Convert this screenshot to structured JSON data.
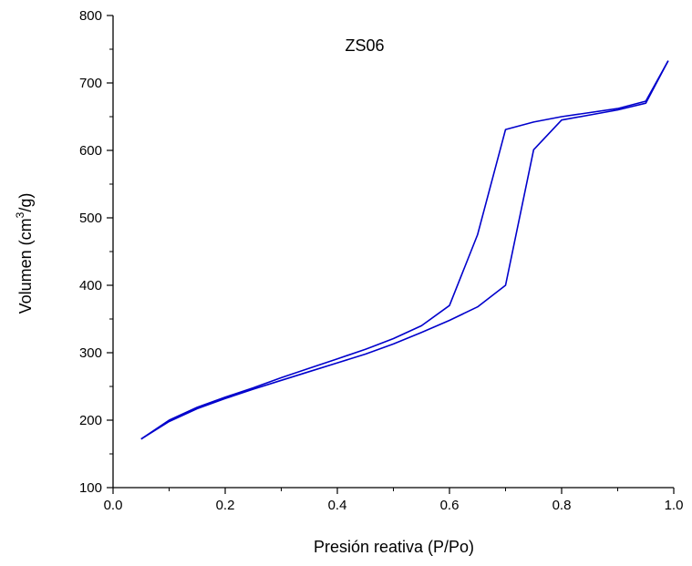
{
  "chart_data": {
    "type": "line",
    "title": "ZS06",
    "xlabel": "Presión reativa (P/Po)",
    "ylabel_main": "Volumen (cm",
    "ylabel_sup": "3",
    "ylabel_tail": "/g)",
    "xlim": [
      0.0,
      1.0
    ],
    "ylim": [
      100,
      800
    ],
    "xticks": [
      0.0,
      0.2,
      0.4,
      0.6,
      0.8,
      1.0
    ],
    "xtick_labels": [
      "0.0",
      "0.2",
      "0.4",
      "0.6",
      "0.8",
      "1.0"
    ],
    "yticks": [
      100,
      200,
      300,
      400,
      500,
      600,
      700,
      800
    ],
    "ytick_labels": [
      "100",
      "200",
      "300",
      "400",
      "500",
      "600",
      "700",
      "800"
    ],
    "line_color": "#0000cc",
    "grid": false,
    "series": [
      {
        "x": [
          0.05,
          0.1,
          0.15,
          0.2,
          0.25,
          0.3,
          0.35,
          0.4,
          0.45,
          0.5,
          0.55,
          0.6,
          0.65,
          0.7,
          0.75,
          0.8,
          0.9,
          0.95,
          0.99
        ],
        "y": [
          172,
          198,
          217,
          232,
          246,
          259,
          272,
          285,
          298,
          313,
          330,
          348,
          368,
          400,
          601,
          645,
          660,
          670,
          733
        ]
      },
      {
        "x": [
          0.99,
          0.95,
          0.9,
          0.8,
          0.75,
          0.7,
          0.65,
          0.6,
          0.55,
          0.5,
          0.45,
          0.4,
          0.35,
          0.3,
          0.25,
          0.2,
          0.15,
          0.1,
          0.05
        ],
        "y": [
          733,
          673,
          662,
          650,
          642,
          631,
          475,
          370,
          340,
          321,
          305,
          291,
          277,
          263,
          248,
          234,
          219,
          200,
          172
        ]
      }
    ]
  }
}
